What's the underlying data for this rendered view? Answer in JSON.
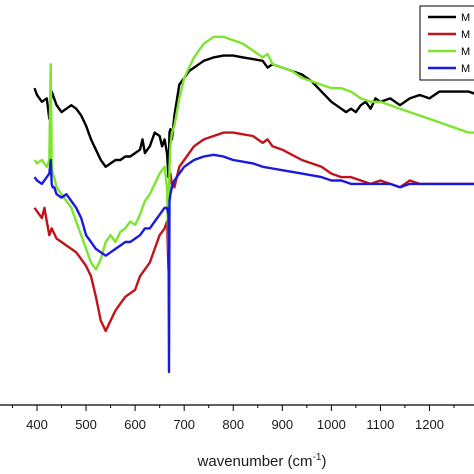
{
  "chart_data": {
    "type": "line",
    "title": "",
    "xlabel": "wavenumber (cm",
    "xlabel_sup": "-1",
    "xlabel_close": ")",
    "ylabel": "",
    "xlim": [
      370,
      1300
    ],
    "ylim": [
      0,
      100
    ],
    "x_ticks": [
      400,
      500,
      600,
      700,
      800,
      900,
      1000,
      1100,
      1200
    ],
    "x_tick_labels": [
      "400",
      "500",
      "600",
      "700",
      "800",
      "900",
      "1000",
      "1100",
      "1200"
    ],
    "grid": false,
    "legend_position": "top-right",
    "series": [
      {
        "name": "M",
        "color": "#000000",
        "x": [
          395,
          400,
          410,
          420,
          425,
          430,
          440,
          450,
          460,
          470,
          480,
          490,
          500,
          510,
          520,
          530,
          540,
          550,
          560,
          570,
          580,
          590,
          600,
          610,
          615,
          620,
          630,
          640,
          650,
          655,
          660,
          665,
          668,
          670,
          672,
          675,
          680,
          690,
          700,
          710,
          720,
          730,
          740,
          750,
          760,
          780,
          800,
          820,
          840,
          860,
          870,
          880,
          900,
          920,
          940,
          960,
          980,
          1000,
          1020,
          1030,
          1040,
          1050,
          1060,
          1070,
          1080,
          1090,
          1100,
          1120,
          1140,
          1160,
          1180,
          1200,
          1220,
          1240,
          1260,
          1280,
          1300
        ],
        "y": [
          83,
          81,
          79,
          80,
          74,
          82,
          78,
          76,
          77,
          78,
          77,
          75,
          72,
          68,
          65,
          62,
          60,
          61,
          62,
          62,
          63,
          63,
          64,
          65,
          68,
          64,
          66,
          70,
          69,
          66,
          68,
          64,
          57,
          70,
          71,
          68,
          75,
          84,
          86,
          88,
          89,
          90,
          91,
          91.5,
          92,
          92.5,
          92.5,
          92,
          91.5,
          91,
          89,
          90,
          89,
          88,
          87,
          85,
          82,
          79,
          77,
          76,
          77,
          76,
          78,
          79,
          77,
          80,
          79,
          80,
          78,
          80,
          81,
          80,
          82,
          82,
          82,
          82,
          81
        ]
      },
      {
        "name": "M",
        "color": "#c0141c",
        "x": [
          395,
          400,
          410,
          415,
          420,
          425,
          430,
          440,
          450,
          460,
          470,
          480,
          490,
          500,
          510,
          520,
          530,
          540,
          550,
          560,
          570,
          580,
          590,
          600,
          610,
          620,
          630,
          640,
          650,
          660,
          665,
          668,
          670,
          672,
          675,
          680,
          690,
          700,
          710,
          720,
          740,
          760,
          780,
          800,
          820,
          840,
          860,
          870,
          880,
          900,
          940,
          980,
          1000,
          1020,
          1040,
          1060,
          1080,
          1100,
          1120,
          1140,
          1160,
          1180,
          1200,
          1240,
          1280,
          1300
        ],
        "y": [
          48,
          47,
          45,
          48,
          44,
          40,
          42,
          39,
          38,
          37,
          36,
          35,
          33,
          31,
          28,
          22,
          15,
          12,
          15,
          18,
          20,
          22,
          23,
          24,
          28,
          30,
          32,
          36,
          40,
          42,
          44,
          30,
          56,
          58,
          55,
          54,
          60,
          62,
          64,
          66,
          68,
          69,
          70,
          70,
          69.5,
          69,
          67,
          68,
          66,
          65,
          62,
          60,
          58,
          57,
          57,
          56,
          55,
          56,
          55,
          54,
          56,
          55,
          55,
          55,
          55,
          55
        ],
        "_note": "series 2"
      },
      {
        "name": "M",
        "color": "#7ee52e",
        "x": [
          395,
          400,
          410,
          420,
          425,
          428,
          430,
          432,
          435,
          440,
          450,
          460,
          470,
          480,
          490,
          500,
          510,
          520,
          530,
          540,
          550,
          560,
          570,
          580,
          590,
          600,
          610,
          620,
          630,
          640,
          650,
          660,
          665,
          668,
          670,
          672,
          675,
          680,
          690,
          700,
          710,
          720,
          730,
          740,
          750,
          760,
          770,
          780,
          800,
          820,
          840,
          860,
          870,
          880,
          900,
          920,
          940,
          960,
          980,
          1000,
          1020,
          1040,
          1060,
          1080,
          1100,
          1120,
          1140,
          1160,
          1180,
          1200,
          1220,
          1240,
          1260,
          1280,
          1300
        ],
        "y": [
          62,
          61,
          62,
          60,
          62,
          90,
          62,
          58,
          57,
          54,
          52,
          50,
          48,
          44,
          40,
          36,
          32,
          30,
          33,
          38,
          40,
          38,
          41,
          42,
          44,
          43,
          46,
          50,
          52,
          55,
          58,
          60,
          54,
          35,
          60,
          66,
          70,
          72,
          80,
          86,
          89,
          92,
          94,
          96,
          97,
          98,
          98,
          98,
          97,
          96,
          94,
          92,
          93,
          90,
          89,
          88,
          86,
          85,
          84,
          83,
          83,
          82,
          80,
          79,
          79,
          78,
          77,
          76,
          75,
          74,
          73,
          72,
          71,
          70,
          70
        ]
      },
      {
        "name": "M",
        "color": "#1a1adc",
        "x": [
          395,
          400,
          410,
          420,
          425,
          428,
          430,
          432,
          435,
          440,
          450,
          460,
          470,
          480,
          490,
          500,
          510,
          520,
          530,
          540,
          550,
          560,
          570,
          580,
          590,
          600,
          610,
          620,
          630,
          640,
          650,
          660,
          665,
          668,
          669,
          670,
          672,
          675,
          680,
          690,
          700,
          710,
          720,
          740,
          760,
          780,
          800,
          820,
          840,
          860,
          880,
          900,
          940,
          980,
          1000,
          1020,
          1040,
          1060,
          1080,
          1100,
          1120,
          1140,
          1160,
          1180,
          1200,
          1240,
          1280,
          1300
        ],
        "y": [
          57,
          56,
          55,
          57,
          58,
          62,
          55,
          54,
          54,
          52,
          51,
          52,
          50,
          48,
          45,
          40,
          38,
          36,
          35,
          34,
          35,
          36,
          37,
          38,
          38,
          39,
          40,
          42,
          42,
          44,
          46,
          48,
          48,
          46,
          0,
          50,
          52,
          54,
          56,
          58,
          60,
          61,
          62,
          63,
          63.5,
          63,
          62,
          61.5,
          61,
          60,
          59.5,
          59,
          58,
          57,
          56,
          56,
          55,
          55,
          55,
          55,
          55,
          54,
          55,
          55,
          55,
          55,
          55,
          55
        ]
      }
    ]
  }
}
